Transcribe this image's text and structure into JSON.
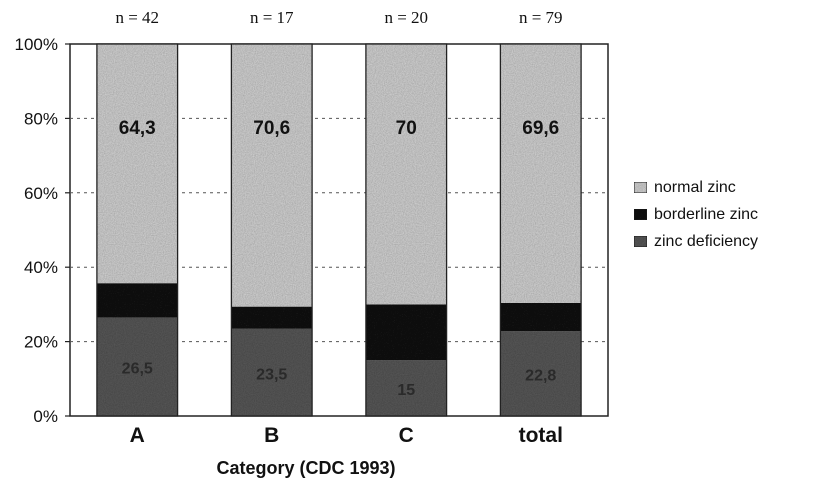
{
  "chart_data": {
    "type": "bar",
    "stacked": true,
    "normalized": true,
    "xlabel": "Category (CDC 1993)",
    "ylabel": "",
    "ylim": [
      0,
      100
    ],
    "yticks": [
      "0%",
      "20%",
      "40%",
      "60%",
      "80%",
      "100%"
    ],
    "categories": [
      "A",
      "B",
      "C",
      "total"
    ],
    "sample_sizes": [
      "n = 42",
      "n = 17",
      "n = 20",
      "n = 79"
    ],
    "series": [
      {
        "name": "zinc deficiency",
        "values": [
          26.5,
          23.5,
          15,
          22.8
        ],
        "labels": [
          "26,5",
          "23,5",
          "15",
          "22,8"
        ],
        "color": "#5a5a5a"
      },
      {
        "name": "borderline zinc",
        "values": [
          9.2,
          5.9,
          15,
          7.6
        ],
        "labels": [
          "",
          "",
          "",
          ""
        ],
        "color": "#141414"
      },
      {
        "name": "normal zinc",
        "values": [
          64.3,
          70.6,
          70,
          69.6
        ],
        "labels": [
          "64,3",
          "70,6",
          "70",
          "69,6"
        ],
        "color": "#d6d6d6"
      }
    ],
    "legend_order": [
      "normal zinc",
      "borderline zinc",
      "zinc deficiency"
    ],
    "legend_position": "right",
    "grid": "horizontal dotted"
  }
}
